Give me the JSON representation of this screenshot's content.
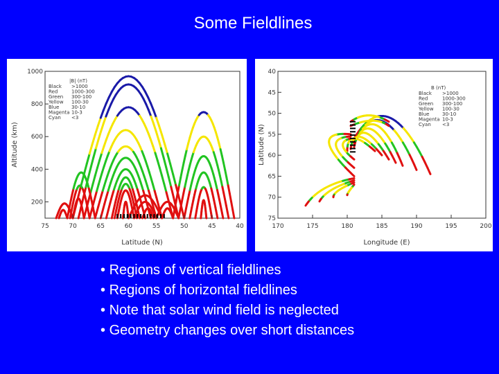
{
  "slide": {
    "title": "Some Fieldlines",
    "bullets": [
      "Regions of vertical fieldlines",
      "Regions of horizontal fieldlines",
      "Note that solar wind field is neglected",
      "Geometry changes over short distances"
    ],
    "bullet_glyph": "•"
  },
  "colors": {
    "background": "#0000ff",
    "blue": "#1a1aa8",
    "yellow": "#f5e600",
    "green": "#22c422",
    "red": "#e01010",
    "magenta": "#c000c0",
    "cyan": "#00b0b0"
  },
  "chart_data": [
    {
      "type": "line",
      "xlabel": "Latitude (N)",
      "ylabel": "Altitude (km)",
      "xlim": [
        75,
        40
      ],
      "ylim": [
        100,
        1000
      ],
      "x_ticks": [
        "75",
        "70",
        "65",
        "60",
        "55",
        "50",
        "45",
        "40"
      ],
      "y_ticks": [
        "1000",
        "800",
        "600",
        "400",
        "200"
      ],
      "legend": {
        "title": "|B| (nT)",
        "entries": [
          {
            "name": "Black",
            "range": ">1000"
          },
          {
            "name": "Red",
            "range": "1000-300"
          },
          {
            "name": "Green",
            "range": "300-100"
          },
          {
            "name": "Yellow",
            "range": "100-30"
          },
          {
            "name": "Blue",
            "range": "30-10"
          },
          {
            "name": "Magenta",
            "range": "10-3"
          },
          {
            "name": "Cyan",
            "range": "<3"
          }
        ]
      },
      "arcs": [
        {
          "x1": 70,
          "x2": 50,
          "peak": 970
        },
        {
          "x1": 69,
          "x2": 51,
          "peak": 920
        },
        {
          "x1": 68,
          "x2": 52,
          "peak": 780
        },
        {
          "x1": 67,
          "x2": 54,
          "peak": 640
        },
        {
          "x1": 66,
          "x2": 55,
          "peak": 540
        },
        {
          "x1": 65,
          "x2": 56,
          "peak": 470
        },
        {
          "x1": 64,
          "x2": 57,
          "peak": 400
        },
        {
          "x1": 63,
          "x2": 58,
          "peak": 350
        },
        {
          "x1": 62.5,
          "x2": 58.5,
          "peak": 310
        },
        {
          "x1": 62,
          "x2": 59,
          "peak": 270
        },
        {
          "x1": 61,
          "x2": 60,
          "peak": 200
        },
        {
          "x1": 71,
          "x2": 66,
          "peak": 380
        },
        {
          "x1": 70.5,
          "x2": 67,
          "peak": 300
        },
        {
          "x1": 70,
          "x2": 68,
          "peak": 220
        },
        {
          "x1": 60,
          "x2": 54,
          "peak": 240
        },
        {
          "x1": 59,
          "x2": 55,
          "peak": 200
        },
        {
          "x1": 57.5,
          "x2": 55.5,
          "peak": 160
        },
        {
          "x1": 52,
          "x2": 41,
          "peak": 750
        },
        {
          "x1": 51,
          "x2": 42,
          "peak": 600
        },
        {
          "x1": 50,
          "x2": 43,
          "peak": 480
        },
        {
          "x1": 49,
          "x2": 44,
          "peak": 380
        },
        {
          "x1": 48,
          "x2": 45,
          "peak": 290
        },
        {
          "x1": 47,
          "x2": 46,
          "peak": 210
        },
        {
          "x1": 55,
          "x2": 51,
          "peak": 200
        },
        {
          "x1": 54,
          "x2": 52,
          "peak": 160
        },
        {
          "x1": 73,
          "x2": 70,
          "peak": 190
        },
        {
          "x1": 72.5,
          "x2": 71,
          "peak": 150
        }
      ]
    },
    {
      "type": "line",
      "xlabel": "Longitude (E)",
      "ylabel": "Latitude (N)",
      "xlim": [
        170,
        200
      ],
      "ylim": [
        75,
        40
      ],
      "x_ticks": [
        "170",
        "175",
        "180",
        "185",
        "190",
        "195",
        "200"
      ],
      "y_ticks": [
        "40",
        "45",
        "50",
        "55",
        "60",
        "65",
        "70",
        "75"
      ],
      "legend": {
        "title": "B (nT)",
        "entries": [
          {
            "name": "Black",
            "range": ">1000"
          },
          {
            "name": "Red",
            "range": "1000-300"
          },
          {
            "name": "Green",
            "range": "300-100"
          },
          {
            "name": "Yellow",
            "range": "100-30"
          },
          {
            "name": "Blue",
            "range": "30-10"
          },
          {
            "name": "Magenta",
            "range": "10-3"
          },
          {
            "name": "Cyan",
            "range": "<3"
          }
        ]
      },
      "lines": [
        {
          "x1": 181,
          "y1": 56,
          "cx": 186,
          "cy": 42,
          "x2": 192,
          "y2": 64.5
        },
        {
          "x1": 181,
          "y1": 56.5,
          "cx": 185,
          "cy": 44,
          "x2": 190,
          "y2": 63.5
        },
        {
          "x1": 181,
          "y1": 57,
          "cx": 184,
          "cy": 46,
          "x2": 188,
          "y2": 62.5
        },
        {
          "x1": 181,
          "y1": 57.5,
          "cx": 183,
          "cy": 48,
          "x2": 187,
          "y2": 61.8
        },
        {
          "x1": 181,
          "y1": 58,
          "cx": 182,
          "cy": 50,
          "x2": 186,
          "y2": 61
        },
        {
          "x1": 180.5,
          "y1": 58.5,
          "cx": 181,
          "cy": 52,
          "x2": 185,
          "y2": 60
        },
        {
          "x1": 180,
          "y1": 59,
          "cx": 180,
          "cy": 53,
          "x2": 184,
          "y2": 59
        },
        {
          "x1": 180.5,
          "y1": 55,
          "cx": 174,
          "cy": 54,
          "x2": 181,
          "y2": 65
        },
        {
          "x1": 180.5,
          "y1": 55.5,
          "cx": 176,
          "cy": 56,
          "x2": 181,
          "y2": 63
        },
        {
          "x1": 180.5,
          "y1": 56,
          "cx": 178,
          "cy": 57,
          "x2": 181,
          "y2": 61
        },
        {
          "x1": 180.5,
          "y1": 52,
          "cx": 183,
          "cy": 49,
          "x2": 186,
          "y2": 52
        },
        {
          "x1": 180.5,
          "y1": 53,
          "cx": 184,
          "cy": 50.5,
          "x2": 186,
          "y2": 53
        },
        {
          "x1": 181,
          "y1": 65.5,
          "cx": 176,
          "cy": 67,
          "x2": 174,
          "y2": 72
        },
        {
          "x1": 181,
          "y1": 66,
          "cx": 177,
          "cy": 68,
          "x2": 176,
          "y2": 71
        },
        {
          "x1": 181,
          "y1": 66.5,
          "cx": 178,
          "cy": 68.5,
          "x2": 178,
          "y2": 70
        },
        {
          "x1": 181,
          "y1": 67,
          "cx": 180,
          "cy": 69,
          "x2": 180,
          "y2": 69.5
        }
      ]
    }
  ]
}
